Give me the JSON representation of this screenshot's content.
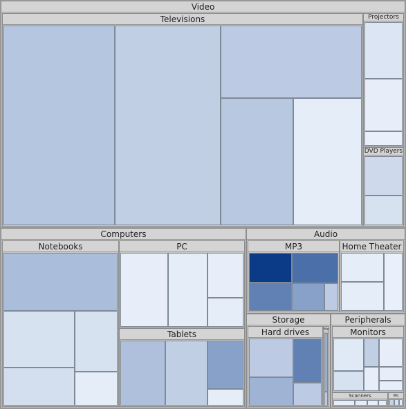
{
  "chart_data": {
    "type": "treemap",
    "title": "",
    "color_scale": {
      "low": "#eef4fd",
      "high": "#0b3b87"
    },
    "tree": [
      {
        "name": "Video",
        "children": [
          {
            "name": "Televisions",
            "children": [
              {
                "value": 13.0,
                "intensity": 0.25
              },
              {
                "value": 12.4,
                "intensity": 0.2
              },
              {
                "value": 6.0,
                "intensity": 0.22
              },
              {
                "value": 5.4,
                "intensity": 0.24
              },
              {
                "value": 5.1,
                "intensity": 0.04
              }
            ]
          },
          {
            "name": "Projectors",
            "children": [
              {
                "value": 1.35,
                "intensity": 0.08
              },
              {
                "value": 1.25,
                "intensity": 0.03
              },
              {
                "value": 0.35,
                "intensity": 0.02
              }
            ]
          },
          {
            "name": "DVD Players",
            "children": [
              {
                "value": 1.0,
                "intensity": 0.14
              },
              {
                "value": 0.75,
                "intensity": 0.1
              }
            ]
          }
        ]
      },
      {
        "name": "Computers",
        "children": [
          {
            "name": "Notebooks",
            "children": [
              {
                "value": 4.1,
                "intensity": 0.3
              },
              {
                "value": 2.5,
                "intensity": 0.1
              },
              {
                "value": 1.7,
                "intensity": 0.12
              },
              {
                "value": 1.6,
                "intensity": 0.1
              },
              {
                "value": 0.9,
                "intensity": 0.04
              }
            ]
          },
          {
            "name": "PC",
            "children": [
              {
                "value": 2.4,
                "intensity": 0.03
              },
              {
                "value": 1.95,
                "intensity": 0.04
              },
              {
                "value": 1.1,
                "intensity": 0.03
              },
              {
                "value": 0.7,
                "intensity": 0.04
              }
            ]
          },
          {
            "name": "Tablets",
            "children": [
              {
                "value": 2.0,
                "intensity": 0.28
              },
              {
                "value": 1.9,
                "intensity": 0.2
              },
              {
                "value": 1.2,
                "intensity": 0.45
              },
              {
                "value": 0.4,
                "intensity": 0.04
              }
            ]
          }
        ]
      },
      {
        "name": "Audio",
        "children": [
          {
            "name": "MP3",
            "children": [
              {
                "value": 1.0,
                "intensity": 1.0
              },
              {
                "value": 0.95,
                "intensity": 0.62
              },
              {
                "value": 1.1,
                "intensity": 0.72
              },
              {
                "value": 0.7,
                "intensity": 0.45
              },
              {
                "value": 0.3,
                "intensity": 0.22
              }
            ]
          },
          {
            "name": "Home Theater",
            "children": [
              {
                "value": 1.0,
                "intensity": 0.04
              },
              {
                "value": 1.0,
                "intensity": 0.04
              },
              {
                "value": 0.85,
                "intensity": 0.02
              }
            ]
          }
        ]
      },
      {
        "name": "Storage",
        "children": [
          {
            "name": "Hard drives",
            "children": [
              {
                "value": 1.3,
                "intensity": 0.22
              },
              {
                "value": 0.95,
                "intensity": 0.35
              },
              {
                "value": 0.95,
                "intensity": 0.62
              },
              {
                "value": 0.5,
                "intensity": 0.22
              }
            ]
          },
          {
            "name": "Me",
            "children": [
              {
                "value": 0.25,
                "intensity": 0.38
              },
              {
                "value": 0.06,
                "intensity": 0.22
              }
            ]
          }
        ]
      },
      {
        "name": "Peripherals",
        "children": [
          {
            "name": "Monitors",
            "children": [
              {
                "value": 0.8,
                "intensity": 0.06
              },
              {
                "value": 0.5,
                "intensity": 0.1
              },
              {
                "value": 0.35,
                "intensity": 0.2
              },
              {
                "value": 0.55,
                "intensity": 0.03
              },
              {
                "value": 0.3,
                "intensity": 0.03
              },
              {
                "value": 0.25,
                "intensity": 0.03
              },
              {
                "value": 0.2,
                "intensity": 0.03
              }
            ]
          },
          {
            "name": "Scanners",
            "children": [
              {
                "value": 0.2,
                "intensity": 0.04
              },
              {
                "value": 0.12,
                "intensity": 0.04
              },
              {
                "value": 0.1,
                "intensity": 0.04
              },
              {
                "value": 0.08,
                "intensity": 0.04
              }
            ]
          },
          {
            "name": "Wo",
            "children": [
              {
                "value": 0.05,
                "intensity": 0.18
              },
              {
                "value": 0.05,
                "intensity": 0.1
              },
              {
                "value": 0.04,
                "intensity": 0.04
              }
            ]
          }
        ]
      }
    ]
  }
}
